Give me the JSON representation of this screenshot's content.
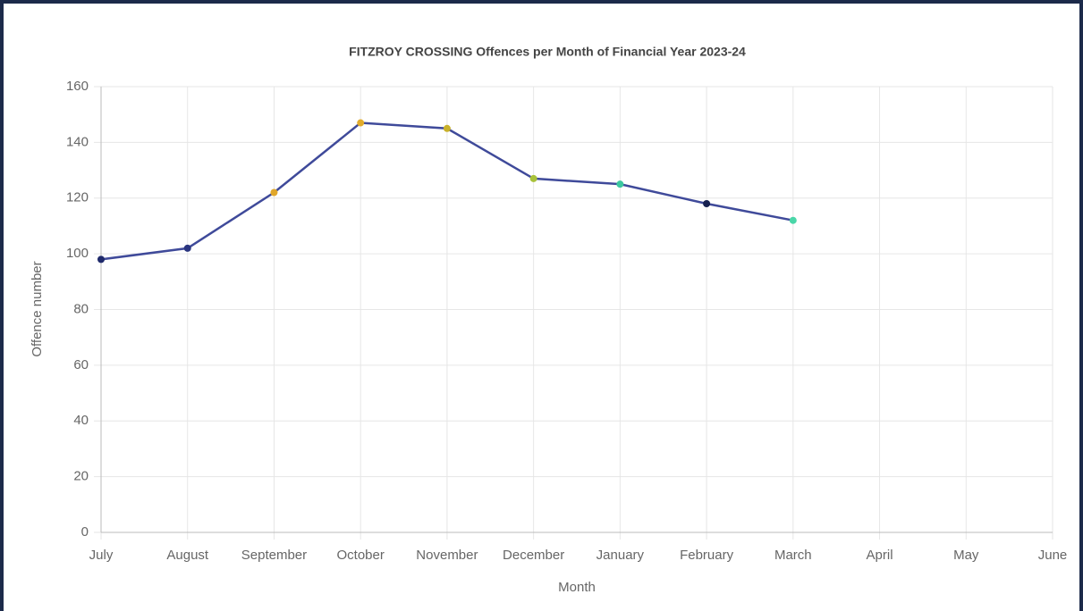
{
  "chart_data": {
    "type": "line",
    "title": "FITZROY CROSSING Offences per Month of Financial Year 2023-24",
    "x_label": "Month",
    "y_label": "Offence number",
    "categories": [
      "July",
      "August",
      "September",
      "October",
      "November",
      "December",
      "January",
      "February",
      "March",
      "April",
      "May",
      "June"
    ],
    "series": [
      {
        "name": "Offences",
        "color": "#3f4a9a",
        "values": [
          98,
          102,
          122,
          147,
          145,
          127,
          125,
          118,
          112,
          null,
          null,
          null
        ],
        "point_colors": [
          "#1f2a6b",
          "#2a3580",
          "#e0a72a",
          "#e2ac2c",
          "#c9b12a",
          "#a9c23a",
          "#3cc8a0",
          "#162050",
          "#4ad6a8",
          null,
          null,
          null
        ]
      }
    ],
    "ylim": [
      0,
      160
    ],
    "yticks": [
      0,
      20,
      40,
      60,
      80,
      100,
      120,
      140,
      160
    ],
    "grid": true
  }
}
